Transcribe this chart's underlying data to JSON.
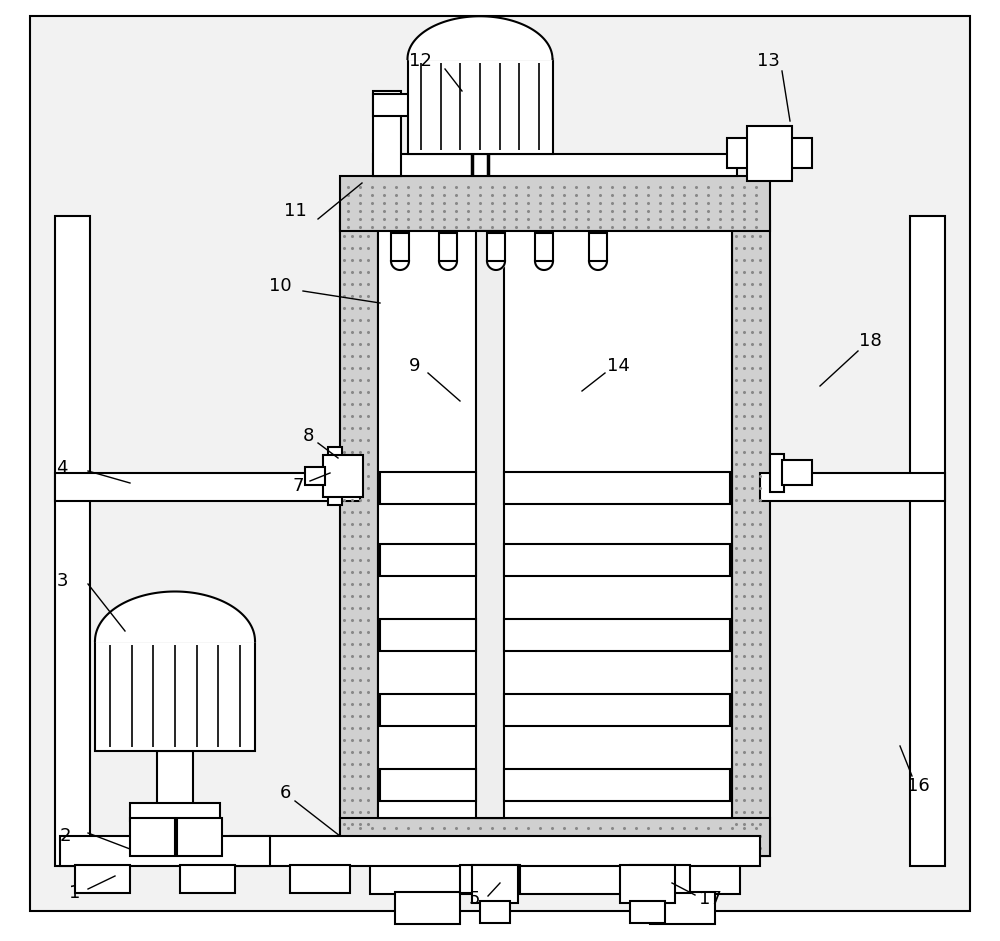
{
  "bg": "#ffffff",
  "lc": "#000000",
  "lw": 1.5,
  "fc": "#ffffff",
  "hatch_color": "#aaaaaa",
  "dot_fill": "#d8d8d8",
  "label_fs": 13
}
